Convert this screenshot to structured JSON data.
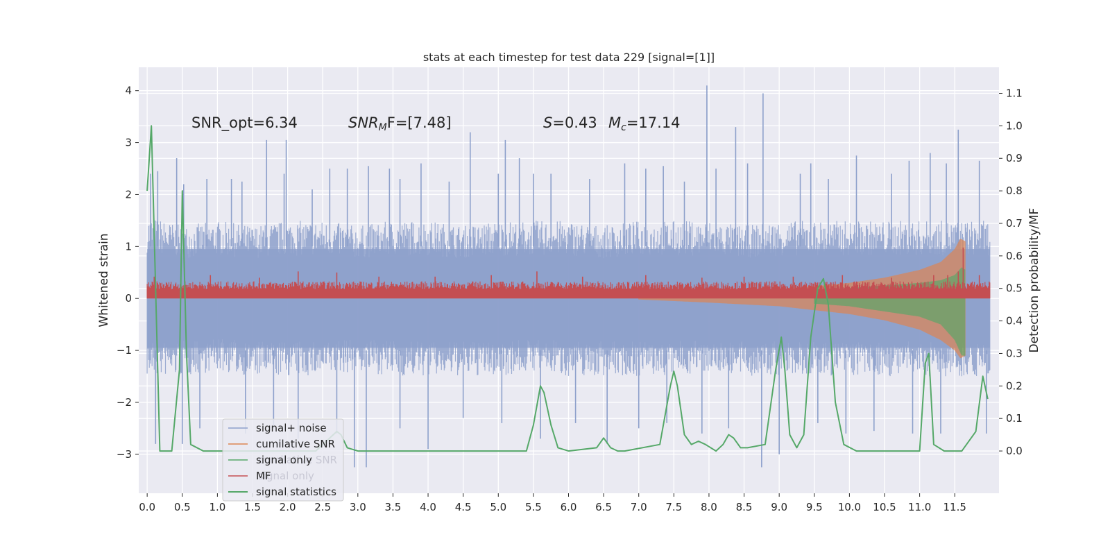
{
  "chart_data": {
    "type": "line",
    "title": "stats at each timestep for test data 229 [signal=[1]]",
    "xlabel": "",
    "ylabel": "Whitened strain",
    "y2label": "Detection probability/MF",
    "xlim": [
      -0.12,
      12.13
    ],
    "ylim": [
      -3.75,
      4.45
    ],
    "y2lim": [
      -0.13,
      1.18
    ],
    "x_ticks": [
      "0.0",
      "0.5",
      "1.0",
      "1.5",
      "2.0",
      "2.5",
      "3.0",
      "3.5",
      "4.0",
      "4.5",
      "5.0",
      "5.5",
      "6.0",
      "6.5",
      "7.0",
      "7.5",
      "8.0",
      "8.5",
      "9.0",
      "9.5",
      "10.0",
      "10.5",
      "11.0",
      "11.5"
    ],
    "y_ticks": [
      "4",
      "3",
      "2",
      "1",
      "0",
      "−1",
      "−2",
      "−3"
    ],
    "y_ticks_values": [
      4,
      3,
      2,
      1,
      0,
      -1,
      -2,
      -3
    ],
    "y2_ticks": [
      "1.1",
      "1.0",
      "0.9",
      "0.8",
      "0.7",
      "0.6",
      "0.5",
      "0.4",
      "0.3",
      "0.2",
      "0.1",
      "0.0"
    ],
    "y2_ticks_values": [
      1.1,
      1.0,
      0.9,
      0.8,
      0.7,
      0.6,
      0.5,
      0.4,
      0.3,
      0.2,
      0.1,
      0.0
    ],
    "grid": true,
    "legend_position": "bottom-left",
    "annotations": {
      "snr_opt": "SNR_opt=6.34",
      "snr_mf_main": "SNR",
      "snr_mf_sub": "M",
      "snr_mf_tail": "F=[7.48]",
      "s_var": "S",
      "s_val": "=0.43",
      "mc_var": "M",
      "mc_sub": "c",
      "mc_val": "=17.14"
    },
    "legend": [
      {
        "label": "signal+ noise",
        "color": "#8da0cb",
        "width": 1.5
      },
      {
        "label": "cumilative SNR",
        "color": "#dd8452",
        "width": 1.5
      },
      {
        "label": "signal only",
        "color": "#55a868",
        "width": 1.5
      },
      {
        "label": "MF",
        "color": "#c44e52",
        "width": 1.5
      },
      {
        "label": "signal statistics",
        "color": "#55a868",
        "width": 2
      }
    ],
    "legend_ghost": [
      {
        "label": "cumilative SNR"
      },
      {
        "label": "signal only"
      }
    ],
    "series": [
      {
        "name": "signal+ noise",
        "color": "#8da0cb",
        "axis": "left",
        "x_range": [
          0.0,
          12.0
        ],
        "envelope_upper": [
          1.6,
          1.4,
          1.5,
          1.4,
          1.5,
          1.5,
          1.4,
          1.5,
          1.5,
          1.4,
          1.5,
          1.5,
          1.5,
          1.4,
          1.5,
          1.5,
          1.5,
          1.4,
          1.5,
          1.5,
          1.5,
          1.5,
          1.5,
          1.5,
          1.5
        ],
        "envelope_lower": [
          -1.5,
          -1.5,
          -1.4,
          -1.5,
          -1.5,
          -1.5,
          -1.4,
          -1.5,
          -1.5,
          -1.5,
          -1.5,
          -1.4,
          -1.5,
          -1.5,
          -1.5,
          -1.5,
          -1.4,
          -1.5,
          -1.5,
          -1.5,
          -1.5,
          -1.5,
          -1.5,
          -1.5,
          -1.5
        ],
        "spikes_up": [
          [
            0.05,
            2.4
          ],
          [
            0.15,
            2.45
          ],
          [
            0.42,
            2.7
          ],
          [
            0.52,
            2.2
          ],
          [
            0.85,
            2.3
          ],
          [
            1.2,
            2.3
          ],
          [
            1.35,
            2.25
          ],
          [
            1.7,
            3.05
          ],
          [
            1.95,
            2.4
          ],
          [
            1.98,
            3.05
          ],
          [
            2.35,
            2.1
          ],
          [
            2.6,
            2.5
          ],
          [
            2.85,
            2.5
          ],
          [
            3.15,
            2.55
          ],
          [
            3.45,
            2.5
          ],
          [
            3.6,
            2.3
          ],
          [
            3.9,
            2.6
          ],
          [
            4.3,
            2.25
          ],
          [
            4.6,
            3.2
          ],
          [
            5.0,
            2.4
          ],
          [
            5.1,
            3.05
          ],
          [
            5.3,
            2.7
          ],
          [
            5.5,
            2.4
          ],
          [
            5.75,
            2.4
          ],
          [
            6.3,
            2.3
          ],
          [
            6.8,
            2.6
          ],
          [
            7.1,
            2.5
          ],
          [
            7.35,
            2.55
          ],
          [
            7.65,
            2.25
          ],
          [
            7.97,
            4.1
          ],
          [
            8.1,
            2.5
          ],
          [
            8.38,
            3.3
          ],
          [
            8.55,
            2.6
          ],
          [
            8.77,
            3.95
          ],
          [
            9.3,
            2.4
          ],
          [
            9.45,
            2.6
          ],
          [
            9.7,
            2.3
          ],
          [
            10.1,
            2.75
          ],
          [
            10.6,
            2.4
          ],
          [
            10.85,
            2.65
          ],
          [
            11.15,
            2.8
          ],
          [
            11.38,
            2.6
          ],
          [
            11.55,
            3.25
          ],
          [
            11.85,
            2.65
          ]
        ],
        "spikes_down": [
          [
            0.12,
            -2.8
          ],
          [
            0.5,
            -2.8
          ],
          [
            0.75,
            -2.5
          ],
          [
            1.4,
            -2.6
          ],
          [
            1.8,
            -2.5
          ],
          [
            2.15,
            -2.7
          ],
          [
            2.7,
            -2.6
          ],
          [
            2.95,
            -3.25
          ],
          [
            3.12,
            -3.25
          ],
          [
            3.6,
            -2.5
          ],
          [
            4.0,
            -2.9
          ],
          [
            4.5,
            -2.3
          ],
          [
            5.05,
            -2.4
          ],
          [
            5.6,
            -2.7
          ],
          [
            6.1,
            -2.4
          ],
          [
            6.55,
            -2.8
          ],
          [
            7.0,
            -2.5
          ],
          [
            7.4,
            -2.4
          ],
          [
            7.9,
            -2.6
          ],
          [
            8.28,
            -2.5
          ],
          [
            8.75,
            -3.25
          ],
          [
            9.0,
            -3.0
          ],
          [
            9.55,
            -2.4
          ],
          [
            9.95,
            -2.6
          ],
          [
            10.35,
            -2.55
          ],
          [
            10.9,
            -2.6
          ],
          [
            11.3,
            -2.6
          ],
          [
            11.95,
            -2.6
          ]
        ]
      },
      {
        "name": "cumilative SNR",
        "color": "#dd8452",
        "axis": "left",
        "x": [
          7.0,
          8.0,
          9.0,
          10.0,
          10.5,
          11.0,
          11.3,
          11.5,
          11.58,
          11.65
        ],
        "upper": [
          0.05,
          0.1,
          0.18,
          0.3,
          0.4,
          0.55,
          0.7,
          0.95,
          1.15,
          1.1
        ],
        "lower": [
          -0.02,
          -0.08,
          -0.15,
          -0.3,
          -0.42,
          -0.6,
          -0.8,
          -1.0,
          -1.15,
          -1.1
        ]
      },
      {
        "name": "signal only",
        "color": "#55a868",
        "axis": "left",
        "x": [
          9.5,
          10.0,
          10.5,
          11.0,
          11.3,
          11.5,
          11.6,
          11.65
        ],
        "upper": [
          0.15,
          0.2,
          0.25,
          0.3,
          0.35,
          0.45,
          0.6,
          0.55
        ],
        "lower": [
          -0.1,
          -0.15,
          -0.25,
          -0.35,
          -0.5,
          -0.8,
          -1.1,
          -1.1
        ]
      },
      {
        "name": "MF",
        "color": "#c44e52",
        "axis": "left",
        "x_range": [
          0.0,
          12.0
        ],
        "band": [
          0.0,
          0.3
        ],
        "spikes": [
          [
            0.1,
            0.42
          ],
          [
            0.9,
            0.45
          ],
          [
            1.6,
            0.4
          ],
          [
            2.15,
            0.52
          ],
          [
            2.7,
            0.5
          ],
          [
            3.3,
            0.42
          ],
          [
            4.1,
            0.42
          ],
          [
            4.9,
            0.45
          ],
          [
            5.55,
            0.52
          ],
          [
            6.2,
            0.42
          ],
          [
            7.1,
            0.45
          ],
          [
            7.9,
            0.4
          ],
          [
            8.5,
            0.42
          ],
          [
            9.2,
            0.42
          ],
          [
            9.9,
            0.45
          ],
          [
            10.6,
            0.4
          ],
          [
            11.2,
            0.45
          ],
          [
            11.4,
            0.45
          ],
          [
            11.55,
            0.52
          ],
          [
            11.62,
            0.98
          ],
          [
            11.85,
            0.45
          ]
        ]
      },
      {
        "name": "signal statistics",
        "color": "#55a868",
        "axis": "right",
        "x": [
          0.0,
          0.06,
          0.12,
          0.18,
          0.35,
          0.46,
          0.5,
          0.56,
          0.62,
          0.8,
          2.4,
          2.7,
          2.76,
          2.85,
          3.0,
          5.4,
          5.5,
          5.6,
          5.65,
          5.75,
          5.85,
          6.0,
          6.4,
          6.5,
          6.6,
          6.7,
          6.8,
          7.3,
          7.45,
          7.5,
          7.55,
          7.65,
          7.75,
          7.85,
          7.95,
          8.1,
          8.2,
          8.28,
          8.35,
          8.45,
          8.55,
          8.8,
          8.95,
          9.03,
          9.08,
          9.15,
          9.25,
          9.35,
          9.45,
          9.55,
          9.63,
          9.7,
          9.8,
          9.92,
          10.1,
          10.5,
          11.0,
          11.08,
          11.13,
          11.2,
          11.35,
          11.6,
          11.8,
          11.9,
          11.97
        ],
        "y": [
          0.8,
          1.0,
          0.5,
          0.0,
          0.0,
          0.25,
          0.8,
          0.3,
          0.02,
          0.0,
          0.0,
          0.06,
          0.05,
          0.01,
          0.0,
          0.0,
          0.08,
          0.2,
          0.18,
          0.08,
          0.01,
          0.0,
          0.01,
          0.04,
          0.01,
          0.0,
          0.0,
          0.02,
          0.2,
          0.245,
          0.2,
          0.05,
          0.02,
          0.03,
          0.02,
          0.0,
          0.02,
          0.05,
          0.04,
          0.01,
          0.01,
          0.02,
          0.25,
          0.35,
          0.25,
          0.05,
          0.01,
          0.05,
          0.35,
          0.5,
          0.53,
          0.45,
          0.15,
          0.02,
          0.0,
          0.0,
          0.0,
          0.27,
          0.3,
          0.02,
          0.0,
          0.0,
          0.06,
          0.23,
          0.16
        ]
      }
    ]
  }
}
